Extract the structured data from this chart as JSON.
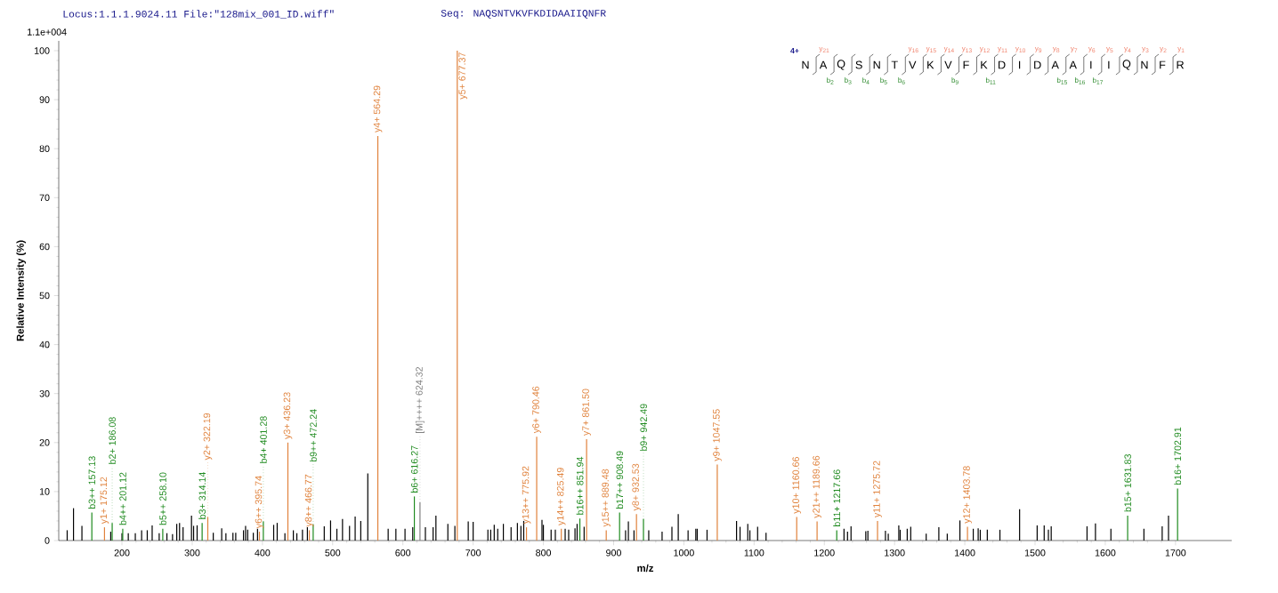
{
  "chart_data": {
    "type": "bar",
    "title": "Locus:1.1.1.9024.11 File:\"128mix_001_ID.wiff\"",
    "subtitle": "Seq: NAQSNTVKVFKDIDAAIIQNFR",
    "xlabel": "m/z",
    "ylabel": "Relative Intensity (%)",
    "xlim": [
      110,
      1780
    ],
    "ylim": [
      0,
      102
    ],
    "xticks": [
      200,
      300,
      400,
      500,
      600,
      700,
      800,
      900,
      1000,
      1100,
      1200,
      1300,
      1400,
      1500,
      1600,
      1700
    ],
    "yticks": [
      0,
      10,
      20,
      30,
      40,
      50,
      60,
      70,
      80,
      90,
      100
    ],
    "series": [
      {
        "color": "#000000",
        "x": [
          122,
          131,
          143,
          184,
          200,
          209,
          219,
          228,
          236,
          243,
          253,
          264,
          272,
          278,
          282,
          287,
          299,
          302,
          307,
          330,
          342,
          348,
          358,
          362,
          373,
          376,
          379,
          387,
          393,
          416,
          421,
          432,
          444,
          449,
          457,
          464,
          488,
          497,
          506,
          514,
          524,
          532,
          540,
          550,
          579,
          590,
          603,
          614,
          632,
          643,
          647,
          664,
          674,
          693,
          700,
          721,
          725,
          730,
          735,
          743,
          754,
          763,
          768,
          772,
          798,
          800,
          811,
          817,
          831,
          836,
          845,
          848,
          858,
          917,
          921,
          929,
          950,
          969,
          983,
          992,
          1006,
          1017,
          1019,
          1033,
          1075,
          1080,
          1091,
          1094,
          1105,
          1117,
          1228,
          1233,
          1238,
          1259,
          1262,
          1287,
          1291,
          1306,
          1308,
          1318,
          1323,
          1345,
          1363,
          1375,
          1393,
          1412,
          1419,
          1422,
          1432,
          1450,
          1478,
          1503,
          1513,
          1519,
          1523,
          1574,
          1586,
          1608,
          1655,
          1681,
          1690
        ],
        "values": [
          2.1,
          6.6,
          3.0,
          1.8,
          1.5,
          1.5,
          1.5,
          2.1,
          2.1,
          3.1,
          1.5,
          1.5,
          1.3,
          3.4,
          3.6,
          2.7,
          5.1,
          3.0,
          3.1,
          1.6,
          2.5,
          1.5,
          1.6,
          1.6,
          2.1,
          3.0,
          2.2,
          1.6,
          2.4,
          3.2,
          3.6,
          1.5,
          2.1,
          1.5,
          2.2,
          2.7,
          2.9,
          4.1,
          2.4,
          4.4,
          3.0,
          4.9,
          4.0,
          13.7,
          2.4,
          2.4,
          2.4,
          2.7,
          2.7,
          2.7,
          5.1,
          3.4,
          3.0,
          3.9,
          3.8,
          2.2,
          2.2,
          3.2,
          2.4,
          3.4,
          2.7,
          3.6,
          3.0,
          4.0,
          4.2,
          3.2,
          2.2,
          2.2,
          2.4,
          2.2,
          2.5,
          3.4,
          2.8,
          2.1,
          3.9,
          2.1,
          2.1,
          1.8,
          2.8,
          5.4,
          2.1,
          2.4,
          2.4,
          2.2,
          4.0,
          2.8,
          3.4,
          2.1,
          2.8,
          1.6,
          2.4,
          1.8,
          2.9,
          1.9,
          2.0,
          2.0,
          1.4,
          3.1,
          2.2,
          2.4,
          2.8,
          1.4,
          2.7,
          1.4,
          4.1,
          2.4,
          2.5,
          2.2,
          2.2,
          2.2,
          6.4,
          3.1,
          3.1,
          2.2,
          2.9,
          2.9,
          3.5,
          2.4,
          2.4,
          2.9,
          5.1
        ]
      },
      {
        "color": "#e0823c",
        "x": [
          175.12,
          322.19,
          395.74,
          436.23,
          466.77,
          564.29,
          677.37,
          775.92,
          790.46,
          825.49,
          861.5,
          889.48,
          932.53,
          1047.55,
          1160.66,
          1189.66,
          1275.72,
          1403.78
        ],
        "values": [
          2.7,
          4.8,
          1.8,
          20.0,
          2.1,
          82.6,
          100,
          2.7,
          21.2,
          2.4,
          20.7,
          2.1,
          5.4,
          15.5,
          4.8,
          3.9,
          4.0,
          2.8
        ]
      },
      {
        "color": "#1e8a1e",
        "x": [
          157.13,
          186.08,
          201.12,
          258.1,
          314.14,
          401.28,
          472.24,
          616.27,
          851.94,
          908.49,
          942.49,
          1217.66,
          1631.83,
          1702.91
        ],
        "values": [
          5.7,
          3.6,
          2.4,
          2.4,
          3.6,
          3.9,
          3.3,
          9.0,
          4.5,
          5.7,
          4.4,
          2.1,
          5.1,
          10.6
        ]
      },
      {
        "color": "#808080",
        "x": [
          624.32
        ],
        "values": [
          7.8
        ]
      }
    ],
    "annotations": [
      "1.1e+004",
      "4+",
      "N",
      "A",
      "Q",
      "S",
      "N",
      "T",
      "V",
      "K",
      "V",
      "F",
      "K",
      "D",
      "I",
      "D",
      "A",
      "A",
      "I",
      "I",
      "Q",
      "N",
      "F",
      "R",
      "y$_{21}$",
      "y$_{16}$",
      "y$_{15}$",
      "y$_{14}$",
      "y$_{13}$",
      "y$_{12}$",
      "y$_{11}$",
      "y$_{10}$",
      "y$_{9}$",
      "y$_{8}$",
      "y$_{7}$",
      "y$_{6}$",
      "y$_{5}$",
      "y$_{4}$",
      "y$_{3}$",
      "y$_{2}$",
      "y$_{1}$",
      "b$_{2}$",
      "b$_{3}$",
      "b$_{4}$",
      "b$_{5}$",
      "b$_{6}$",
      "b$_{9}$",
      "b$_{11}$",
      "b$_{15}$",
      "b$_{16}$",
      "b$_{17}$",
      {
        "text": "b3++ 157.13",
        "x": 157.13,
        "y": 5.7
      },
      {
        "text": "y1+ 175.12",
        "x": 175.12,
        "y": 2.7
      },
      {
        "text": "b2+ 186.08",
        "x": 186.08,
        "y": 3.6
      },
      {
        "text": "b4++ 201.12",
        "x": 201.12,
        "y": 2.4
      },
      {
        "text": "b5++ 258.10",
        "x": 258.1,
        "y": 2.4
      },
      {
        "text": "b3+ 314.14",
        "x": 314.14,
        "y": 3.6
      },
      {
        "text": "y2+ 322.19",
        "x": 322.19,
        "y": 4.8
      },
      {
        "text": "y6++ 395.74",
        "x": 395.74,
        "y": 1.8
      },
      {
        "text": "b4+ 401.28",
        "x": 401.28,
        "y": 3.9
      },
      {
        "text": "y3+ 436.23",
        "x": 436.23,
        "y": 20.0
      },
      {
        "text": "y8++ 466.77",
        "x": 466.77,
        "y": 2.1
      },
      {
        "text": "b9++ 472.24",
        "x": 472.24,
        "y": 3.3
      },
      {
        "text": "y4+ 564.29",
        "x": 564.29,
        "y": 82.6
      },
      {
        "text": "b6+ 616.27",
        "x": 616.27,
        "y": 9.0
      },
      {
        "text": "[M]++++ 624.32",
        "x": 624.32,
        "y": 7.8
      },
      {
        "text": "y5+ 677.37",
        "x": 677.37,
        "y": 100
      },
      {
        "text": "y13++ 775.92",
        "x": 775.92,
        "y": 2.7
      },
      {
        "text": "y6+ 790.46",
        "x": 790.46,
        "y": 21.2
      },
      {
        "text": "y14++ 825.49",
        "x": 825.49,
        "y": 2.4
      },
      {
        "text": "b16++ 851.94",
        "x": 851.94,
        "y": 4.5
      },
      {
        "text": "y7+ 861.50",
        "x": 861.5,
        "y": 20.7
      },
      {
        "text": "y15++ 889.48",
        "x": 889.48,
        "y": 2.1
      },
      {
        "text": "b17++ 908.49",
        "x": 908.49,
        "y": 5.7
      },
      {
        "text": "y8+ 932.53",
        "x": 932.53,
        "y": 5.4
      },
      {
        "text": "b9+ 942.49",
        "x": 942.49,
        "y": 4.4
      },
      {
        "text": "y9+ 1047.55",
        "x": 1047.55,
        "y": 15.5
      },
      {
        "text": "y10+ 1160.66",
        "x": 1160.66,
        "y": 4.8
      },
      {
        "text": "y21++ 1189.66",
        "x": 1189.66,
        "y": 3.9
      },
      {
        "text": "b11+ 1217.66",
        "x": 1217.66,
        "y": 2.1
      },
      {
        "text": "y11+ 1275.72",
        "x": 1275.72,
        "y": 4.0
      },
      {
        "text": "y12+ 1403.78",
        "x": 1403.78,
        "y": 2.8
      },
      {
        "text": "b15+ 1631.83",
        "x": 1631.83,
        "y": 5.1
      },
      {
        "text": "b16+ 1702.91",
        "x": 1702.91,
        "y": 10.6
      }
    ]
  }
}
